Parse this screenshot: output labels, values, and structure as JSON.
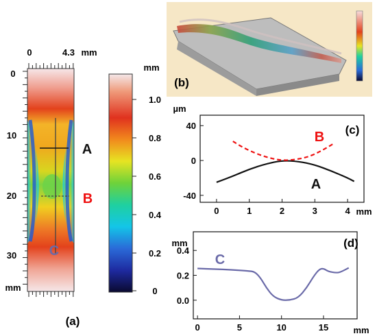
{
  "colors": {
    "black": "#111111",
    "red": "#ee1111",
    "purple": "#6a6aa8",
    "panel_b_bg": "#f6e7c6",
    "panel_bg": "#ffffff"
  },
  "panel_a": {
    "label": "(a)",
    "top_axis": {
      "unit": "mm",
      "ticks": [
        "0",
        "4.3"
      ]
    },
    "left_axis": {
      "unit": "mm",
      "ticks": [
        "0",
        "10",
        "20",
        "30"
      ]
    },
    "line_labels": {
      "A": "A",
      "B": "B",
      "C": "C"
    },
    "colorbar": {
      "unit": "mm",
      "ticks": [
        "1.0",
        "0.8",
        "0.6",
        "0.4",
        "0.2",
        "0"
      ]
    }
  },
  "panel_b": {
    "label": "(b)"
  },
  "chart_data": [
    {
      "type": "line",
      "panel": "(c)",
      "ylabel": "µm",
      "xlabel": "mm",
      "xlim": [
        -0.5,
        4.5
      ],
      "ylim": [
        -48,
        52
      ],
      "xticks": [
        "0",
        "1",
        "2",
        "3",
        "4"
      ],
      "yticks": [
        "40",
        "0",
        "-40"
      ],
      "series": [
        {
          "name": "A",
          "color": "#111111",
          "style": "solid",
          "x": [
            0,
            0.5,
            1.0,
            1.5,
            2.0,
            2.5,
            3.0,
            3.5,
            4.0,
            4.2
          ],
          "y": [
            -25,
            -18,
            -10,
            -4,
            0,
            -1,
            -5,
            -12,
            -20,
            -24
          ]
        },
        {
          "name": "B",
          "color": "#ee1111",
          "style": "dashed",
          "x": [
            0.5,
            0.8,
            1.2,
            1.6,
            2.0,
            2.4,
            2.8,
            3.2,
            3.6
          ],
          "y": [
            22,
            15,
            8,
            3,
            0,
            1,
            4,
            11,
            20
          ]
        }
      ]
    },
    {
      "type": "line",
      "panel": "(d)",
      "ylabel": "mm",
      "xlabel": "mm",
      "xlim": [
        -0.5,
        19
      ],
      "ylim": [
        -0.15,
        0.55
      ],
      "xticks": [
        "0",
        "5",
        "10",
        "15"
      ],
      "yticks": [
        "0.4",
        "0.2",
        "0.0"
      ],
      "series": [
        {
          "name": "C",
          "color": "#6a6aa8",
          "style": "solid",
          "x": [
            0,
            2,
            4,
            6,
            6.8,
            7.5,
            8.2,
            9,
            10,
            11,
            12,
            13,
            13.8,
            14.5,
            15,
            15.6,
            16.5,
            17,
            18
          ],
          "y": [
            0.255,
            0.25,
            0.245,
            0.235,
            0.23,
            0.18,
            0.1,
            0.03,
            0.0,
            0.0,
            0.02,
            0.1,
            0.19,
            0.25,
            0.255,
            0.23,
            0.22,
            0.225,
            0.26
          ]
        }
      ]
    }
  ]
}
